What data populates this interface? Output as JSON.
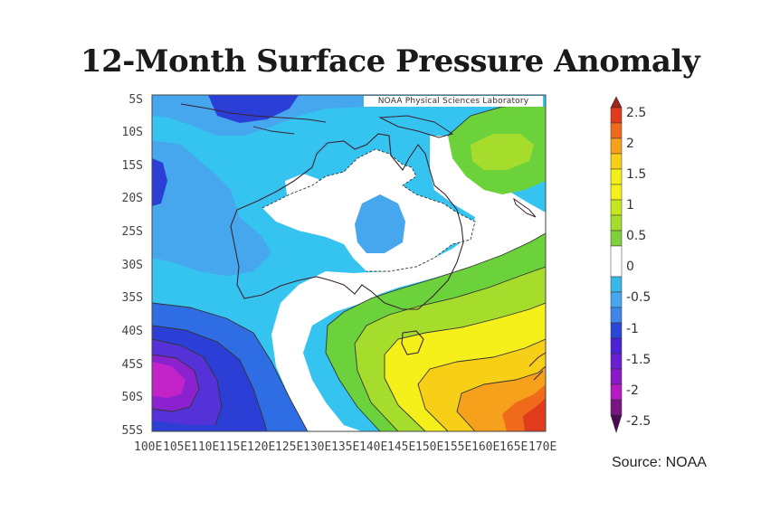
{
  "title": "12-Month Surface Pressure Anomaly",
  "credit": "NOAA Physical Sciences Laboratory",
  "source": "Source: NOAA",
  "y_axis_labels": [
    "5S",
    "10S",
    "15S",
    "20S",
    "25S",
    "30S",
    "35S",
    "40S",
    "45S",
    "50S",
    "55S"
  ],
  "x_axis_labels": [
    "100E",
    "105E",
    "110E",
    "115E",
    "120E",
    "125E",
    "130E",
    "135E",
    "140E",
    "145E",
    "150E",
    "155E",
    "160E",
    "165E",
    "170E"
  ],
  "colorbar": {
    "ticks": [
      "2.5",
      "2",
      "1.5",
      "1",
      "0.5",
      "0",
      "-0.5",
      "-1",
      "-1.5",
      "-2",
      "-2.5"
    ],
    "colors": [
      "#e03b1d",
      "#f06a1c",
      "#f6a11b",
      "#f7cf17",
      "#f2f01b",
      "#c8e61f",
      "#7fd03a",
      "#ffffff",
      "#36b9e6",
      "#3f86ea",
      "#2c46d8",
      "#4a23d6",
      "#8a19c9",
      "#b61ac2",
      "#5e0f63"
    ]
  },
  "map_fill_colors": {
    "cyan": "#35c3ef",
    "light_blue": "#46a6ee",
    "blue": "#2f6de4",
    "dark_blue": "#2b3fd6",
    "indigo": "#5532d8",
    "violet": "#8c22cf",
    "magenta": "#c223c8",
    "green": "#6cd23c",
    "light_green": "#a6dc2b",
    "yellow": "#f5f01a",
    "yellow_orange": "#f7cf17",
    "orange": "#f6a11b",
    "dark_orange": "#f06a1c",
    "red": "#e03b1d"
  }
}
